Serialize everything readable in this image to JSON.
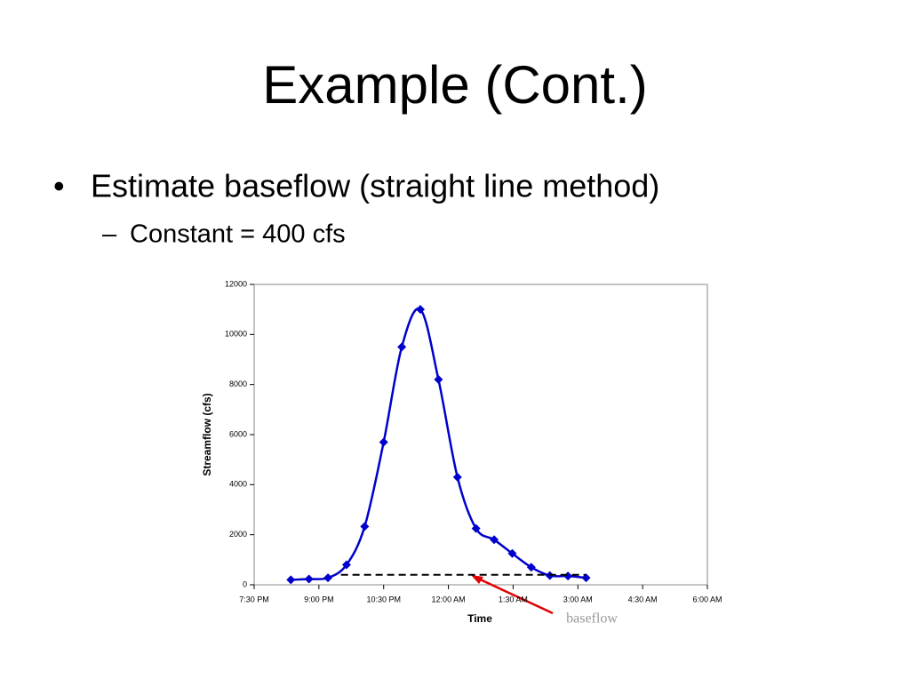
{
  "slide": {
    "title": "Example (Cont.)",
    "bullet": "Estimate baseflow (straight line method)",
    "sub_bullet": "Constant = 400 cfs"
  },
  "chart_data": {
    "type": "line",
    "xlabel": "Time",
    "ylabel": "Streamflow (cfs)",
    "annotation": "baseflow",
    "xlim": [
      19.5,
      30
    ],
    "ylim": [
      0,
      12000
    ],
    "xticks": [
      {
        "value": 19.5,
        "label": "7:30 PM"
      },
      {
        "value": 21,
        "label": "9:00 PM"
      },
      {
        "value": 22.5,
        "label": "10:30 PM"
      },
      {
        "value": 24,
        "label": "12:00 AM"
      },
      {
        "value": 25.5,
        "label": "1:30 AM"
      },
      {
        "value": 27,
        "label": "3:00 AM"
      },
      {
        "value": 28.5,
        "label": "4:30 AM"
      },
      {
        "value": 30,
        "label": "6:00 AM"
      }
    ],
    "yticks": [
      0,
      2000,
      4000,
      6000,
      8000,
      10000,
      12000
    ],
    "series": [
      {
        "name": "Streamflow",
        "color": "#0000cc",
        "x": [
          20.35,
          20.77,
          21.21,
          21.64,
          22.06,
          22.5,
          22.92,
          23.35,
          23.77,
          24.21,
          24.64,
          25.06,
          25.48,
          25.92,
          26.35,
          26.77,
          27.19
        ],
        "values": [
          200,
          230,
          280,
          800,
          2330,
          5700,
          9500,
          11000,
          8200,
          4300,
          2250,
          1800,
          1250,
          700,
          370,
          350,
          280
        ]
      },
      {
        "name": "baseflow",
        "color": "#000000",
        "x": [
          21.51,
          27.17
        ],
        "values": [
          400,
          400
        ]
      }
    ]
  }
}
